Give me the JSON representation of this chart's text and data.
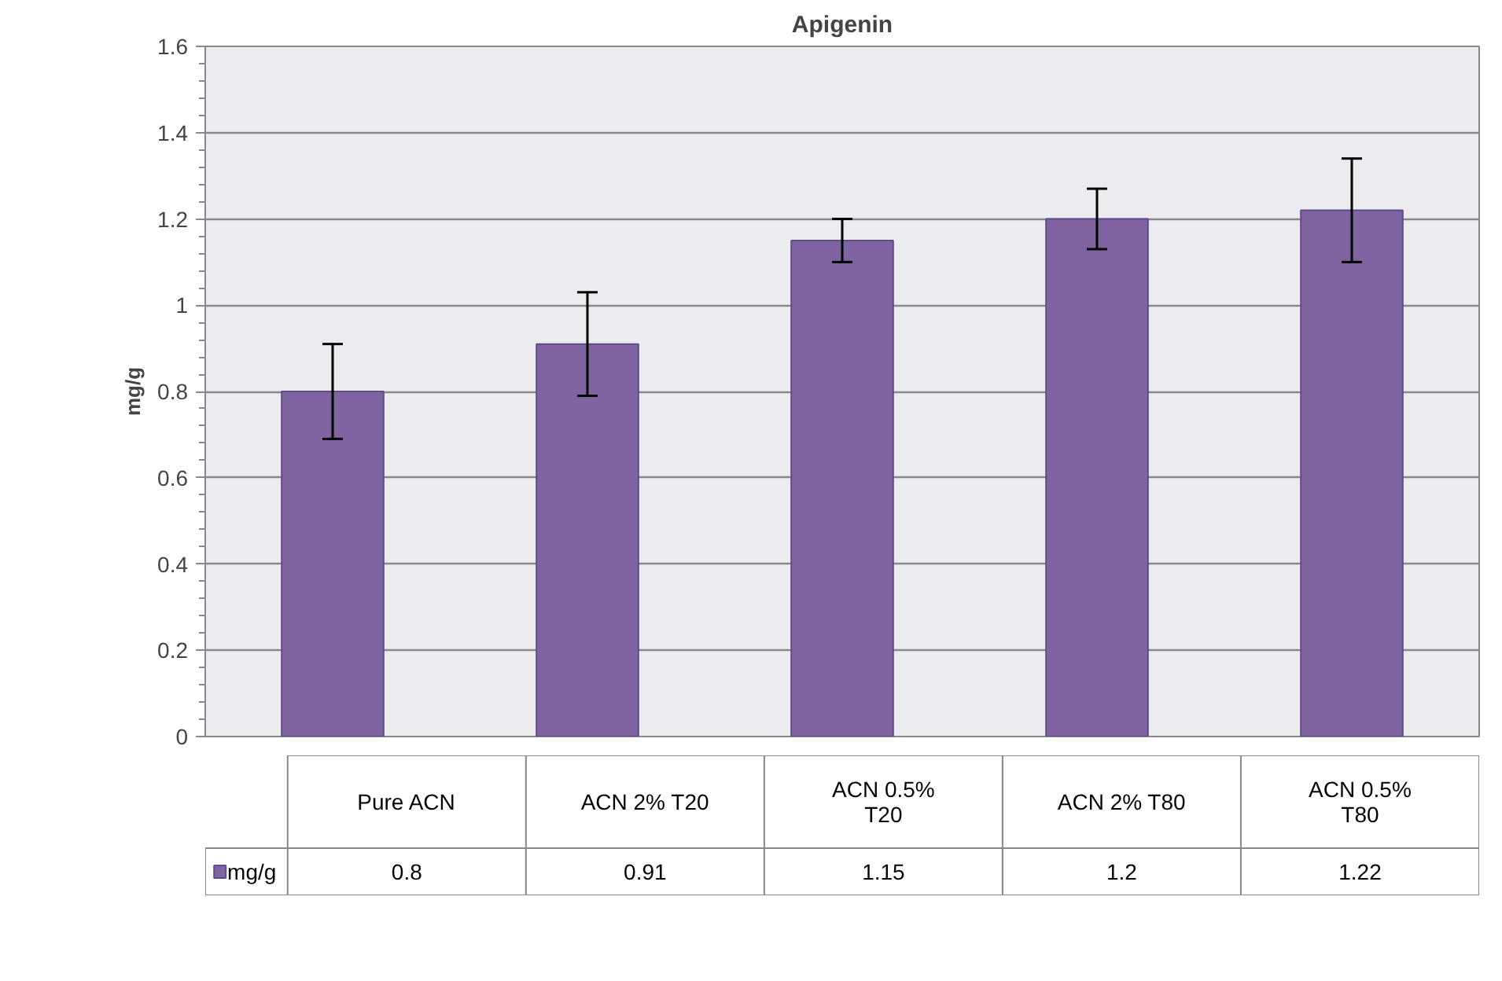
{
  "chart_data": {
    "type": "bar",
    "title": "Apigenin",
    "ylabel": "mg/g",
    "categories": [
      "Pure ACN",
      "ACN 2% T20",
      "ACN 0.5% T20",
      "ACN 2% T80",
      "ACN 0.5% T80"
    ],
    "series": [
      {
        "name": "mg/g",
        "color": "#8064a2",
        "values": [
          0.8,
          0.91,
          1.15,
          1.2,
          1.22
        ],
        "errors": [
          0.11,
          0.12,
          0.05,
          0.07,
          0.12
        ]
      }
    ],
    "ylim": [
      0,
      1.6
    ],
    "yticks": [
      0,
      0.2,
      0.4,
      0.6,
      0.8,
      1,
      1.2,
      1.4,
      1.6
    ],
    "grid": "y",
    "legend": "bottom",
    "data_labels": true
  }
}
